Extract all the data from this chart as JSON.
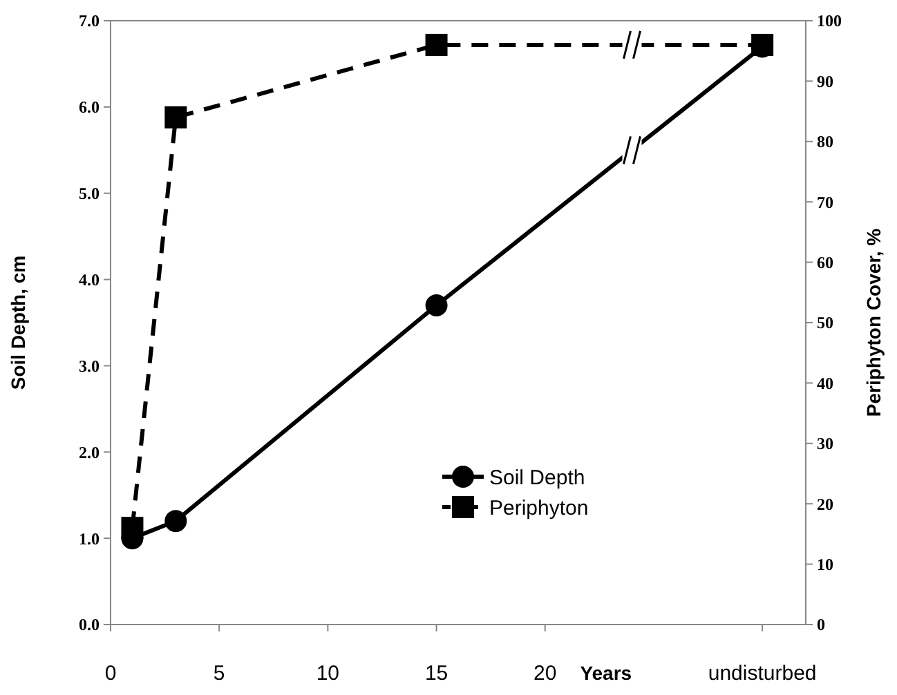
{
  "chart_data": {
    "type": "line",
    "xlabel": "Years",
    "ylabel": "Soil Depth, cm",
    "y2label": "Periphyton Cover, %",
    "x": [
      1,
      3,
      15,
      30
    ],
    "xlim": [
      0,
      32
    ],
    "xticks": [
      0,
      5,
      10,
      15,
      20,
      {
        "value": 30,
        "label": "undisturbed"
      }
    ],
    "ylim": [
      0,
      7
    ],
    "yticks": [
      {
        "value": 0,
        "label": "0.0"
      },
      {
        "value": 1,
        "label": "1.0"
      },
      {
        "value": 2,
        "label": "2.0"
      },
      {
        "value": 3,
        "label": "3.0"
      },
      {
        "value": 4,
        "label": "4.0"
      },
      {
        "value": 5,
        "label": "5.0"
      },
      {
        "value": 6,
        "label": "6.0"
      },
      {
        "value": 7,
        "label": "7.0"
      }
    ],
    "y2lim": [
      0,
      100
    ],
    "y2ticks": [
      0,
      10,
      20,
      30,
      40,
      50,
      60,
      70,
      80,
      90,
      100
    ],
    "series": [
      {
        "name": "Soil Depth",
        "color": "#000000",
        "values": [
          1.0,
          1.2,
          3.7,
          6.7
        ],
        "marker": "circle",
        "line_style": "solid"
      },
      {
        "name": "Periphyton",
        "color": "#000000",
        "values": [
          16,
          84,
          96,
          96
        ],
        "marker": "square",
        "line_style": "dashed",
        "axis": "y2"
      }
    ],
    "legend": "bottom right",
    "grid": false
  }
}
